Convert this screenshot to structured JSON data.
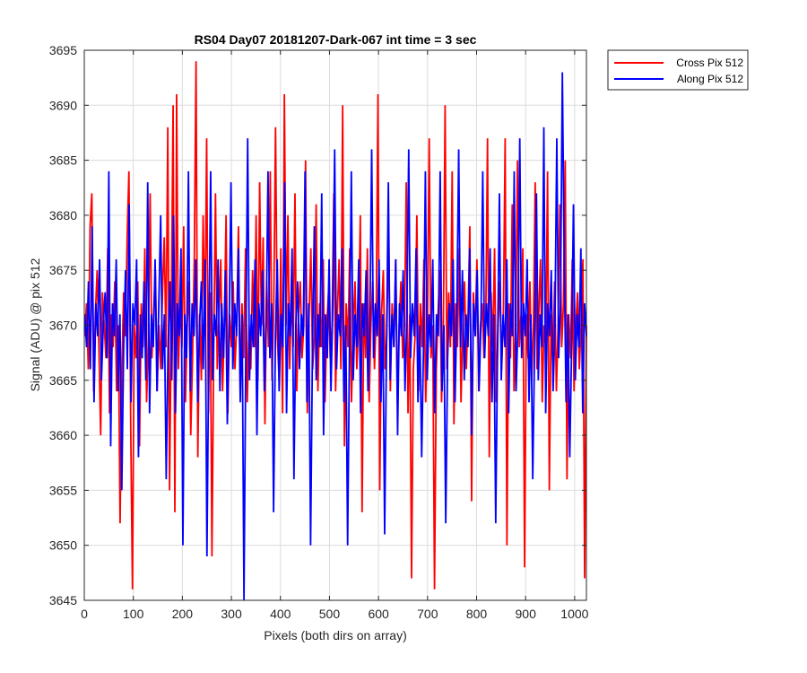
{
  "chart_data": {
    "type": "line",
    "title": "RS04 Day07 20181207-Dark-067 int time = 3 sec",
    "xlabel": "Pixels (both dirs on array)",
    "ylabel": "Signal (ADU) @ pix 512",
    "xlim": [
      0,
      1024
    ],
    "ylim": [
      3645,
      3695
    ],
    "xticks": [
      0,
      100,
      200,
      300,
      400,
      500,
      600,
      700,
      800,
      900,
      1000
    ],
    "yticks": [
      3645,
      3650,
      3655,
      3660,
      3665,
      3670,
      3675,
      3680,
      3685,
      3690,
      3695
    ],
    "grid": true,
    "legend_position": "outside-top-right",
    "series": [
      {
        "name": "Cross Pix 512",
        "color": "#ff0000",
        "x_start": 1,
        "x_end": 1024,
        "values": [
          3669,
          3672,
          3666,
          3679,
          3682,
          3664,
          3671,
          3675,
          3668,
          3660,
          3673,
          3670,
          3667,
          3677,
          3662,
          3671,
          3668,
          3674,
          3664,
          3670,
          3652,
          3666,
          3673,
          3669,
          3678,
          3684,
          3661,
          3646,
          3670,
          3667,
          3674,
          3659,
          3672,
          3668,
          3677,
          3663,
          3669,
          3682,
          3667,
          3671,
          3675,
          3664,
          3670,
          3666,
          3673,
          3678,
          3668,
          3688,
          3655,
          3671,
          3690,
          3653,
          3691,
          3666,
          3672,
          3668,
          3679,
          3663,
          3670,
          3674,
          3660,
          3667,
          3676,
          3694,
          3658,
          3671,
          3665,
          3680,
          3669,
          3687,
          3662,
          3673,
          3649,
          3668,
          3682,
          3666,
          3671,
          3676,
          3664,
          3670,
          3680,
          3662,
          3671,
          3668,
          3674,
          3666,
          3670,
          3679,
          3664,
          3672,
          3667,
          3677,
          3663,
          3670,
          3666,
          3675,
          3668,
          3680,
          3665,
          3683,
          3670,
          3678,
          3661,
          3674,
          3668,
          3684,
          3665,
          3672,
          3688,
          3669,
          3665,
          3677,
          3662,
          3691,
          3670,
          3680,
          3666,
          3673,
          3668,
          3682,
          3664,
          3671,
          3674,
          3667,
          3670,
          3685,
          3662,
          3671,
          3677,
          3666,
          3669,
          3681,
          3664,
          3672,
          3668,
          3676,
          3663,
          3670,
          3673,
          3667,
          3670,
          3682,
          3664,
          3671,
          3676,
          3666,
          3690,
          3659,
          3672,
          3668,
          3677,
          3663,
          3670,
          3674,
          3666,
          3670,
          3680,
          3653,
          3672,
          3667,
          3677,
          3663,
          3670,
          3674,
          3666,
          3671,
          3691,
          3655,
          3671,
          3675,
          3666,
          3669,
          3679,
          3664,
          3672,
          3668,
          3676,
          3663,
          3670,
          3674,
          3667,
          3670,
          3683,
          3662,
          3671,
          3647,
          3666,
          3669,
          3680,
          3664,
          3672,
          3668,
          3676,
          3663,
          3670,
          3687,
          3667,
          3670,
          3646,
          3666,
          3671,
          3675,
          3663,
          3670,
          3690,
          3666,
          3673,
          3668,
          3684,
          3661,
          3672,
          3668,
          3677,
          3663,
          3670,
          3674,
          3666,
          3671,
          3679,
          3654,
          3673,
          3669,
          3676,
          3664,
          3670,
          3672,
          3667,
          3670,
          3687,
          3658,
          3673,
          3668,
          3677,
          3663,
          3670,
          3674,
          3666,
          3671,
          3687,
          3650,
          3672,
          3667,
          3681,
          3664,
          3670,
          3685,
          3668,
          3671,
          3677,
          3648,
          3671,
          3667,
          3674,
          3665,
          3670,
          3683,
          3666,
          3671,
          3676,
          3663,
          3670,
          3668,
          3684,
          3655,
          3671,
          3666,
          3674,
          3664,
          3670,
          3681,
          3668,
          3672,
          3685,
          3656,
          3671,
          3667,
          3676,
          3664,
          3670,
          3673,
          3666,
          3670,
          3676,
          3647,
          3670
        ],
        "note": ""
      },
      {
        "name": "Along Pix 512",
        "color": "#0000ff",
        "x_start": 1,
        "x_end": 1024,
        "values": [
          3671,
          3668,
          3674,
          3666,
          3679,
          3663,
          3672,
          3669,
          3676,
          3665,
          3670,
          3673,
          3667,
          3684,
          3659,
          3672,
          3669,
          3676,
          3664,
          3671,
          3655,
          3668,
          3675,
          3666,
          3681,
          3663,
          3672,
          3670,
          3676,
          3658,
          3671,
          3667,
          3674,
          3665,
          3683,
          3662,
          3671,
          3668,
          3676,
          3664,
          3672,
          3680,
          3666,
          3671,
          3656,
          3668,
          3674,
          3665,
          3680,
          3662,
          3672,
          3669,
          3677,
          3650,
          3671,
          3667,
          3684,
          3664,
          3672,
          3669,
          3676,
          3663,
          3670,
          3674,
          3666,
          3676,
          3649,
          3668,
          3684,
          3665,
          3671,
          3669,
          3676,
          3664,
          3672,
          3667,
          3675,
          3661,
          3670,
          3683,
          3666,
          3672,
          3669,
          3677,
          3663,
          3671,
          3645,
          3668,
          3687,
          3665,
          3671,
          3668,
          3676,
          3660,
          3672,
          3669,
          3675,
          3664,
          3670,
          3684,
          3667,
          3672,
          3653,
          3669,
          3676,
          3664,
          3671,
          3668,
          3683,
          3662,
          3672,
          3669,
          3677,
          3656,
          3670,
          3674,
          3666,
          3671,
          3669,
          3684,
          3663,
          3672,
          3650,
          3668,
          3679,
          3665,
          3671,
          3668,
          3682,
          3660,
          3671,
          3667,
          3676,
          3664,
          3672,
          3686,
          3666,
          3671,
          3669,
          3677,
          3663,
          3670,
          3650,
          3668,
          3684,
          3665,
          3671,
          3668,
          3676,
          3662,
          3672,
          3669,
          3675,
          3664,
          3670,
          3686,
          3667,
          3672,
          3669,
          3676,
          3663,
          3671,
          3651,
          3668,
          3683,
          3665,
          3671,
          3668,
          3676,
          3660,
          3672,
          3669,
          3675,
          3664,
          3671,
          3686,
          3667,
          3672,
          3669,
          3677,
          3663,
          3670,
          3658,
          3668,
          3684,
          3665,
          3671,
          3668,
          3676,
          3662,
          3671,
          3669,
          3684,
          3664,
          3670,
          3652,
          3667,
          3672,
          3669,
          3676,
          3663,
          3671,
          3686,
          3668,
          3675,
          3665,
          3671,
          3668,
          3677,
          3660,
          3672,
          3669,
          3675,
          3664,
          3670,
          3684,
          3667,
          3672,
          3669,
          3677,
          3663,
          3671,
          3652,
          3668,
          3682,
          3665,
          3671,
          3668,
          3676,
          3662,
          3672,
          3669,
          3684,
          3664,
          3670,
          3687,
          3667,
          3672,
          3669,
          3676,
          3663,
          3671,
          3656,
          3668,
          3682,
          3665,
          3671,
          3668,
          3688,
          3662,
          3672,
          3669,
          3675,
          3664,
          3670,
          3687,
          3667,
          3672,
          3693,
          3676,
          3663,
          3671,
          3658,
          3668,
          3681,
          3665,
          3671,
          3668,
          3677,
          3662,
          3672,
          3669
        ]
      }
    ]
  }
}
